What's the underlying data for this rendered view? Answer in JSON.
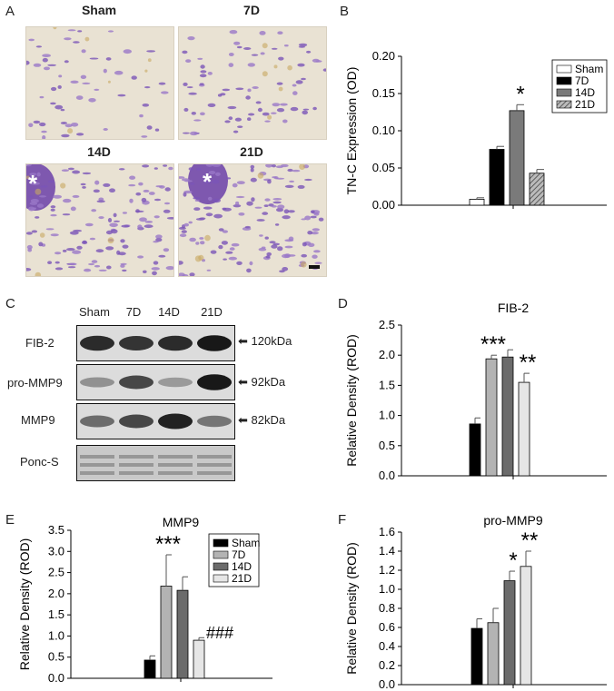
{
  "panels": {
    "a": "A",
    "b": "B",
    "c": "C",
    "d": "D",
    "e": "E",
    "f": "F"
  },
  "micrographs": [
    {
      "label": "Sham",
      "asterisk": ""
    },
    {
      "label": "7D",
      "asterisk": ""
    },
    {
      "label": "14D",
      "asterisk": "*"
    },
    {
      "label": "21D",
      "asterisk": "*"
    }
  ],
  "blot": {
    "lanes": [
      "Sham",
      "7D",
      "14D",
      "21D"
    ],
    "rows": [
      {
        "name": "FIB-2",
        "kda": "120kDa",
        "intensity": [
          0.85,
          0.8,
          0.85,
          0.95
        ]
      },
      {
        "name": "pro-MMP9",
        "kda": "92kDa",
        "intensity": [
          0.3,
          0.7,
          0.25,
          0.95
        ]
      },
      {
        "name": "MMP9",
        "kda": "82kDa",
        "intensity": [
          0.5,
          0.7,
          0.9,
          0.45
        ]
      },
      {
        "name": "Ponc-S",
        "kda": "",
        "intensity": [
          0.35,
          0.35,
          0.35,
          0.35
        ]
      }
    ]
  },
  "chart_data": [
    {
      "id": "B",
      "type": "bar",
      "title": "",
      "ylabel": "TN-C Expression (OD)",
      "ylim": [
        0,
        0.2
      ],
      "yticks": [
        "0.00",
        "0.05",
        "0.10",
        "0.15",
        "0.20"
      ],
      "yticks_values": [
        0,
        0.05,
        0.1,
        0.15,
        0.2
      ],
      "categories": [
        "Sham",
        "7D",
        "14D",
        "21D"
      ],
      "values": [
        0.008,
        0.075,
        0.127,
        0.043
      ],
      "errors": [
        0.002,
        0.004,
        0.008,
        0.005
      ],
      "colors": [
        "#ffffff",
        "#000000",
        "#7a7a7a",
        "hatch"
      ],
      "annotations": [
        {
          "index": 2,
          "text": "*"
        }
      ],
      "legend": {
        "position": "top-right",
        "entries": [
          "Sham",
          "7D",
          "14D",
          "21D"
        ]
      }
    },
    {
      "id": "D",
      "type": "bar",
      "title": "FIB-2",
      "ylabel": "Relative Density (ROD)",
      "ylim": [
        0,
        2.5
      ],
      "yticks": [
        "0.0",
        "0.5",
        "1.0",
        "1.5",
        "2.0",
        "2.5"
      ],
      "yticks_values": [
        0,
        0.5,
        1.0,
        1.5,
        2.0,
        2.5
      ],
      "categories": [
        "Sham",
        "7D",
        "14D",
        "21D"
      ],
      "values": [
        0.86,
        1.94,
        1.97,
        1.55
      ],
      "errors": [
        0.1,
        0.06,
        0.12,
        0.15
      ],
      "colors": [
        "#000000",
        "#b3b3b3",
        "#6b6b6b",
        "#e6e6e6"
      ],
      "annotations": [
        {
          "index": 1,
          "text": "***"
        },
        {
          "index": 3,
          "text": "**"
        }
      ],
      "legend": null
    },
    {
      "id": "E",
      "type": "bar",
      "title": "MMP9",
      "ylabel": "Relative Density (ROD)",
      "ylim": [
        0,
        3.5
      ],
      "yticks": [
        "0.0",
        "0.5",
        "1.0",
        "1.5",
        "2.0",
        "2.5",
        "3.0",
        "3.5"
      ],
      "yticks_values": [
        0,
        0.5,
        1.0,
        1.5,
        2.0,
        2.5,
        3.0,
        3.5
      ],
      "categories": [
        "Sham",
        "7D",
        "14D",
        "21D"
      ],
      "values": [
        0.43,
        2.18,
        2.08,
        0.9
      ],
      "errors": [
        0.1,
        0.74,
        0.32,
        0.06
      ],
      "colors": [
        "#000000",
        "#b3b3b3",
        "#6b6b6b",
        "#e6e6e6"
      ],
      "annotations": [
        {
          "index": 1,
          "text": "***"
        },
        {
          "index": 3,
          "text": "###"
        }
      ],
      "legend": {
        "position": "top-right",
        "entries": [
          "Sham",
          "7D",
          "14D",
          "21D"
        ]
      }
    },
    {
      "id": "F",
      "type": "bar",
      "title": "pro-MMP9",
      "ylabel": "Relative Density (ROD)",
      "ylim": [
        0,
        1.6
      ],
      "yticks": [
        "0.0",
        "0.2",
        "0.4",
        "0.6",
        "0.8",
        "1.0",
        "1.2",
        "1.4",
        "1.6"
      ],
      "yticks_values": [
        0,
        0.2,
        0.4,
        0.6,
        0.8,
        1.0,
        1.2,
        1.4,
        1.6
      ],
      "categories": [
        "Sham",
        "7D",
        "14D",
        "21D"
      ],
      "values": [
        0.59,
        0.65,
        1.09,
        1.24
      ],
      "errors": [
        0.1,
        0.15,
        0.1,
        0.16
      ],
      "colors": [
        "#000000",
        "#b3b3b3",
        "#6b6b6b",
        "#e6e6e6"
      ],
      "annotations": [
        {
          "index": 2,
          "text": "*"
        },
        {
          "index": 3,
          "text": "**"
        }
      ],
      "legend": null
    }
  ]
}
